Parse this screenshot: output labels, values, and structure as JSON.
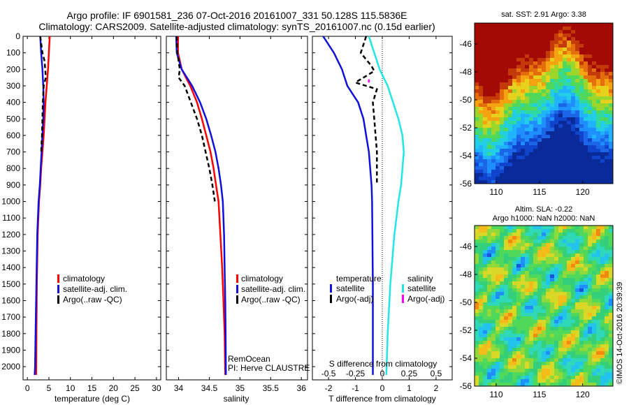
{
  "header": {
    "line1": "Argo profile: IF 6901581_236 07-Oct-2016 20161007_331 50.128S 115.5836E",
    "line2": "Climatology: CARS2009. Satellite-adjusted climatology: synTS_20161007.nc (0.15d earlier)"
  },
  "colors": {
    "red": "#ff0000",
    "blue": "#1010dd",
    "cyan": "#22e6e6",
    "magenta": "#ff00ff",
    "black": "#000000"
  },
  "legend_temp": [
    "climatology",
    "satellite-adj. clim.",
    "Argo(..raw -QC)"
  ],
  "legend_sal": [
    "climatology",
    "satellite-adj. clim.",
    "Argo(..raw -QC)"
  ],
  "legend_diff": {
    "temp_head": "temperature",
    "sal_head": "salinity",
    "temp_items": [
      "satellite",
      "Argo(-adj)"
    ],
    "sal_items": [
      "satellite",
      "Argo(-adj)"
    ]
  },
  "annotations": {
    "remocean": "RemOcean",
    "pi": "PI: Herve CLAUSTRE"
  },
  "sst_map": {
    "title": "sat. SST: 2.91 Argo: 3.38"
  },
  "sla_map": {
    "title1": "Altim. SLA: -0.22",
    "title2": "Argo h1000: NaN h2000: NaN"
  },
  "footer_vertical": "©IMOS 14-Oct-2016 20:39:39",
  "chart_data": [
    {
      "type": "line",
      "xlabel": "temperature (deg C)",
      "xlim": [
        -1,
        31
      ],
      "xticks": [
        "0",
        "5",
        "10",
        "15",
        "20",
        "25",
        "30"
      ],
      "ylim": [
        2080,
        0
      ],
      "yticks": [
        "0",
        "100",
        "200",
        "300",
        "400",
        "500",
        "600",
        "700",
        "800",
        "900",
        "1000",
        "1100",
        "1200",
        "1300",
        "1400",
        "1500",
        "1600",
        "1700",
        "1800",
        "1900",
        "2000"
      ],
      "series": [
        {
          "name": "climatology",
          "color": "#ff0000",
          "x": [
            5.2,
            5.0,
            4.8,
            4.5,
            4.2,
            4.0,
            3.8,
            3.5,
            3.2,
            3.0,
            2.7,
            2.4,
            2.2,
            2.1,
            2.05
          ],
          "y": [
            0,
            100,
            200,
            300,
            400,
            500,
            600,
            700,
            800,
            900,
            1000,
            1200,
            1500,
            1800,
            2050
          ]
        },
        {
          "name": "satellite-adj. clim.",
          "color": "#1010dd",
          "x": [
            3.0,
            3.2,
            3.5,
            3.7,
            3.8,
            3.7,
            3.5,
            3.3,
            3.1,
            2.9,
            2.6,
            2.3,
            2.1,
            1.9,
            1.8,
            1.7
          ],
          "y": [
            0,
            100,
            200,
            300,
            400,
            500,
            600,
            700,
            800,
            900,
            1000,
            1200,
            1500,
            1800,
            2000,
            2050
          ]
        },
        {
          "name": "Argo(..raw -QC)",
          "color": "#000000",
          "x": [
            3.0,
            3.5,
            4.0,
            4.3,
            3.8,
            3.6,
            3.5,
            3.4,
            3.2
          ],
          "y": [
            0,
            100,
            150,
            250,
            300,
            400,
            500,
            600,
            700
          ]
        }
      ]
    },
    {
      "type": "line",
      "xlabel": "salinity",
      "xlim": [
        33.8,
        36.1
      ],
      "xticks": [
        "34",
        "34.5",
        "35",
        "35.5",
        "36"
      ],
      "ylim": [
        2080,
        0
      ],
      "series": [
        {
          "name": "climatology",
          "color": "#ff0000",
          "x": [
            33.99,
            33.99,
            34.05,
            34.19,
            34.3,
            34.38,
            34.45,
            34.52,
            34.57,
            34.61,
            34.65,
            34.68,
            34.71,
            34.73,
            34.75,
            34.76
          ],
          "y": [
            0,
            100,
            200,
            300,
            400,
            500,
            600,
            700,
            800,
            900,
            1000,
            1200,
            1400,
            1600,
            1800,
            2050
          ]
        },
        {
          "name": "satellite-adj. clim.",
          "color": "#1010dd",
          "x": [
            33.96,
            33.97,
            34.05,
            34.22,
            34.35,
            34.45,
            34.53,
            34.6,
            34.65,
            34.69,
            34.72,
            34.74,
            34.75,
            34.76,
            34.765,
            34.77
          ],
          "y": [
            0,
            100,
            200,
            300,
            400,
            500,
            600,
            700,
            800,
            900,
            1000,
            1200,
            1400,
            1600,
            1800,
            2050
          ]
        },
        {
          "name": "Argo(..raw -QC)",
          "color": "#000000",
          "x": [
            33.97,
            33.98,
            34.02,
            34.0,
            34.1,
            34.2,
            34.3,
            34.38,
            34.44,
            34.5,
            34.55,
            34.59
          ],
          "y": [
            0,
            100,
            200,
            250,
            300,
            400,
            500,
            600,
            700,
            800,
            900,
            1000
          ]
        }
      ]
    },
    {
      "type": "line",
      "xlabel": "T difference from climatology",
      "top_xlabel": "S difference from climatology",
      "xlim": [
        -2.6,
        2.6
      ],
      "xticks": [
        "-2",
        "-1",
        "0",
        "1",
        "2"
      ],
      "top_xticks": [
        "-0.5",
        "-0.25",
        "0",
        "0.25",
        "0.5"
      ],
      "ylim": [
        2080,
        0
      ],
      "series": [
        {
          "name": "temperature satellite",
          "color": "#1010dd",
          "x": [
            -2.2,
            -1.8,
            -1.5,
            -1.3,
            -0.9,
            -0.7,
            -0.6,
            -0.5,
            -0.45,
            -0.4,
            -0.38,
            -0.35,
            -0.35
          ],
          "y": [
            0,
            100,
            200,
            300,
            400,
            500,
            600,
            700,
            800,
            900,
            1000,
            1500,
            2050
          ]
        },
        {
          "name": "temperature Argo(-adj)",
          "color": "#000000",
          "x": [
            -0.6,
            -0.8,
            -0.4,
            -0.3,
            -1.0,
            -0.2,
            -0.35,
            -0.3,
            -0.25,
            -0.2,
            -0.2,
            -0.2
          ],
          "y": [
            0,
            100,
            180,
            210,
            280,
            320,
            400,
            500,
            600,
            700,
            800,
            900
          ]
        },
        {
          "name": "salinity satellite",
          "color": "#22e6e6",
          "x": [
            -0.5,
            -0.3,
            -0.1,
            0.2,
            0.4,
            0.6,
            0.75,
            0.8,
            0.75,
            0.7,
            0.6,
            0.45,
            0.3,
            0.2,
            0.15
          ],
          "y": [
            0,
            100,
            200,
            300,
            400,
            500,
            600,
            700,
            800,
            900,
            1000,
            1200,
            1500,
            1800,
            2050
          ]
        },
        {
          "name": "salinity Argo(-adj)",
          "color": "#ff00ff",
          "x": [
            -0.5,
            -0.5
          ],
          "y": [
            260,
            280
          ]
        }
      ]
    },
    {
      "type": "heatmap",
      "title": "sat. SST: 2.91 Argo: 3.38",
      "xlim": [
        107.5,
        123.5
      ],
      "ylim": [
        -56,
        -44.5
      ],
      "xticks": [
        "110",
        "115",
        "120"
      ],
      "yticks": [
        "-46",
        "-48",
        "-50",
        "-52",
        "-54",
        "-56"
      ]
    },
    {
      "type": "heatmap",
      "title": "Altim. SLA: -0.22",
      "xlim": [
        107.5,
        123.5
      ],
      "ylim": [
        -56,
        -44.5
      ],
      "xticks": [
        "110",
        "115",
        "120"
      ],
      "yticks": [
        "-46",
        "-48",
        "-50",
        "-52",
        "-54",
        "-56"
      ]
    }
  ]
}
